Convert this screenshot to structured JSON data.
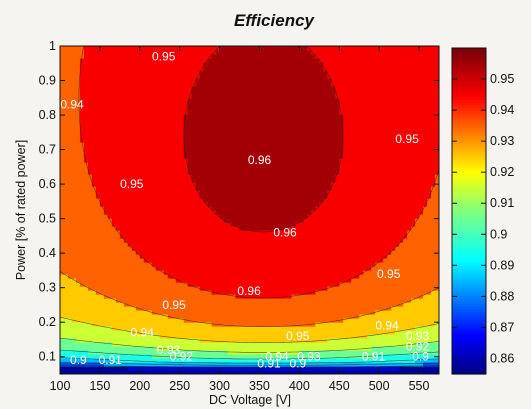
{
  "chart_data": {
    "type": "contour",
    "title": "Efficiency",
    "xlabel": "DC Voltage [V]",
    "ylabel": "Power [% of rated power]",
    "xlim": [
      100,
      575
    ],
    "ylim": [
      0.05,
      1
    ],
    "x_ticks": [
      "100",
      "150",
      "200",
      "250",
      "300",
      "350",
      "400",
      "450",
      "500",
      "550"
    ],
    "y_ticks": [
      "0.1",
      "0.2",
      "0.3",
      "0.4",
      "0.5",
      "0.6",
      "0.7",
      "0.8",
      "0.9",
      "1"
    ],
    "colorbar": {
      "min": 0.855,
      "max": 0.96,
      "ticks": [
        "0.86",
        "0.87",
        "0.88",
        "0.89",
        "0.9",
        "0.91",
        "0.92",
        "0.93",
        "0.94",
        "0.95"
      ]
    },
    "contour_levels": [
      0.86,
      0.87,
      0.88,
      0.89,
      0.9,
      0.91,
      0.92,
      0.93,
      0.94,
      0.95,
      0.96
    ],
    "contour_labels": [
      {
        "text": "0.95",
        "x": 230,
        "y": 0.97
      },
      {
        "text": "0.94",
        "x": 115,
        "y": 0.83
      },
      {
        "text": "0.95",
        "x": 535,
        "y": 0.73
      },
      {
        "text": "0.96",
        "x": 350,
        "y": 0.67
      },
      {
        "text": "0.95",
        "x": 190,
        "y": 0.6
      },
      {
        "text": "0.96",
        "x": 382,
        "y": 0.46
      },
      {
        "text": "0.95",
        "x": 512,
        "y": 0.34
      },
      {
        "text": "0.96",
        "x": 337,
        "y": 0.29
      },
      {
        "text": "0.95",
        "x": 243,
        "y": 0.25
      },
      {
        "text": "0.94",
        "x": 510,
        "y": 0.19
      },
      {
        "text": "0.94",
        "x": 203,
        "y": 0.17
      },
      {
        "text": "0.95",
        "x": 398,
        "y": 0.16
      },
      {
        "text": "0.93",
        "x": 548,
        "y": 0.16
      },
      {
        "text": "0.93",
        "x": 236,
        "y": 0.12
      },
      {
        "text": "0.92",
        "x": 252,
        "y": 0.1
      },
      {
        "text": "0.94",
        "x": 372,
        "y": 0.1
      },
      {
        "text": "0.93",
        "x": 412,
        "y": 0.1
      },
      {
        "text": "0.92",
        "x": 548,
        "y": 0.13
      },
      {
        "text": "0.9",
        "x": 123,
        "y": 0.09
      },
      {
        "text": "0.91",
        "x": 163,
        "y": 0.09
      },
      {
        "text": "0.91",
        "x": 362,
        "y": 0.08
      },
      {
        "text": "0.9",
        "x": 398,
        "y": 0.08
      },
      {
        "text": "0.91",
        "x": 493,
        "y": 0.1
      },
      {
        "text": "0.9",
        "x": 552,
        "y": 0.1
      }
    ]
  }
}
